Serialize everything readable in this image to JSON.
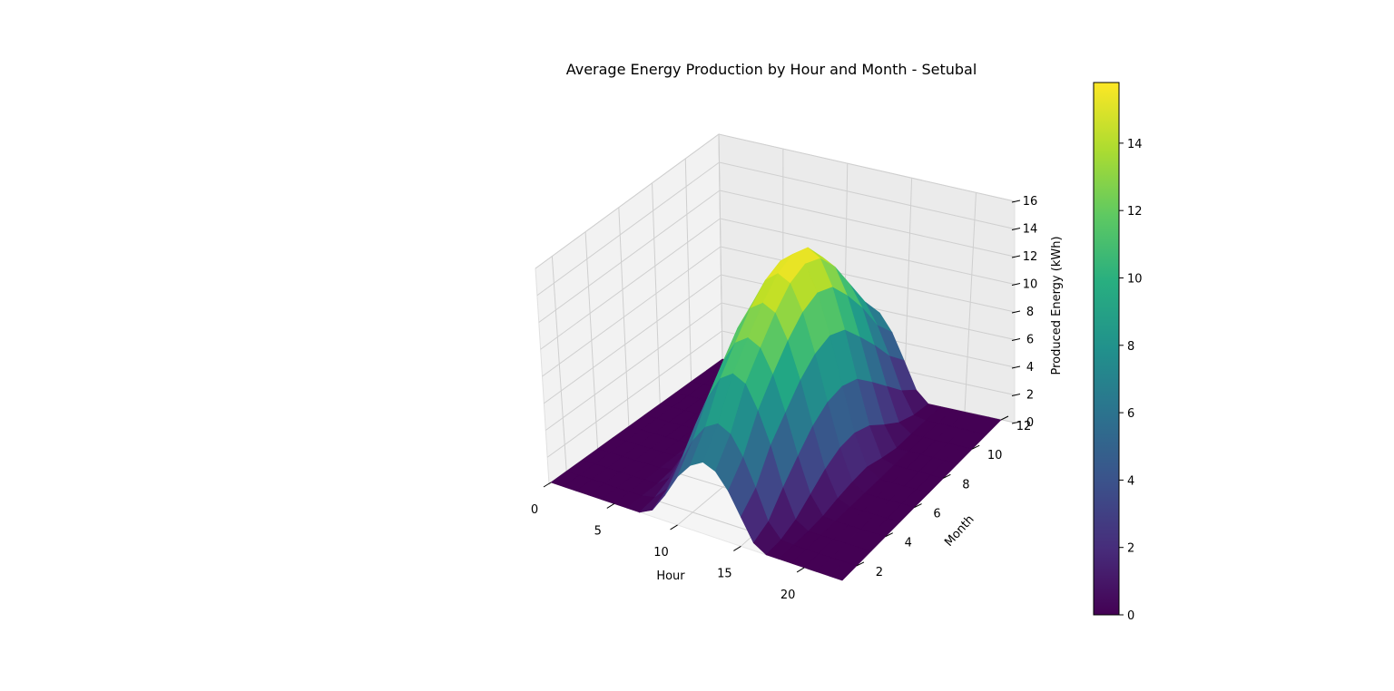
{
  "chart_data": {
    "type": "surface3d",
    "title": "Average Energy Production by Hour and Month - Setubal",
    "xlabel": "Hour",
    "ylabel": "Month",
    "zlabel": "Produced Energy (kWh)",
    "x_ticks": [
      0,
      5,
      10,
      15,
      20
    ],
    "y_ticks": [
      2,
      4,
      6,
      8,
      10,
      12
    ],
    "z_ticks": [
      0,
      2,
      4,
      6,
      8,
      10,
      12,
      14,
      16
    ],
    "xlim": [
      0,
      23
    ],
    "ylim": [
      1,
      12
    ],
    "zlim": [
      0,
      16
    ],
    "colorbar": {
      "colormap": "viridis",
      "range": [
        0,
        15.8
      ],
      "ticks": [
        0,
        2,
        4,
        6,
        8,
        10,
        12,
        14
      ]
    },
    "hours": [
      0,
      1,
      2,
      3,
      4,
      5,
      6,
      7,
      8,
      9,
      10,
      11,
      12,
      13,
      14,
      15,
      16,
      17,
      18,
      19,
      20,
      21,
      22,
      23
    ],
    "months": [
      1,
      2,
      3,
      4,
      5,
      6,
      7,
      8,
      9,
      10,
      11,
      12
    ],
    "z_grid": [
      [
        0,
        0,
        0,
        0,
        0,
        0,
        0,
        0,
        0.5,
        2.0,
        3.8,
        5.0,
        5.6,
        5.2,
        4.0,
        2.3,
        0.6,
        0,
        0,
        0,
        0,
        0,
        0,
        0
      ],
      [
        0,
        0,
        0,
        0,
        0,
        0,
        0,
        0.2,
        1.2,
        3.5,
        5.6,
        7.0,
        7.6,
        7.1,
        5.6,
        3.5,
        1.2,
        0.1,
        0,
        0,
        0,
        0,
        0,
        0
      ],
      [
        0,
        0,
        0,
        0,
        0,
        0,
        0,
        0.8,
        2.8,
        5.5,
        8.0,
        9.8,
        10.5,
        10.0,
        8.2,
        5.8,
        2.8,
        0.6,
        0,
        0,
        0,
        0,
        0,
        0
      ],
      [
        0,
        0,
        0,
        0,
        0,
        0,
        0.2,
        1.8,
        4.3,
        7.2,
        9.8,
        11.6,
        12.3,
        11.8,
        10.0,
        7.3,
        4.2,
        1.5,
        0.1,
        0,
        0,
        0,
        0,
        0
      ],
      [
        0,
        0,
        0,
        0,
        0,
        0,
        0.6,
        2.6,
        5.6,
        8.8,
        11.5,
        13.3,
        14.0,
        13.5,
        11.6,
        8.8,
        5.5,
        2.4,
        0.4,
        0,
        0,
        0,
        0,
        0
      ],
      [
        0,
        0,
        0,
        0,
        0,
        0,
        0.8,
        3.0,
        6.2,
        9.6,
        12.5,
        14.5,
        15.3,
        14.8,
        12.8,
        9.8,
        6.3,
        3.0,
        0.6,
        0,
        0,
        0,
        0,
        0
      ],
      [
        0,
        0,
        0,
        0,
        0,
        0,
        0.7,
        2.9,
        6.3,
        9.9,
        13.0,
        15.0,
        15.8,
        15.3,
        13.3,
        10.2,
        6.5,
        3.1,
        0.7,
        0,
        0,
        0,
        0,
        0
      ],
      [
        0,
        0,
        0,
        0,
        0,
        0,
        0.3,
        2.3,
        5.8,
        9.4,
        12.5,
        14.5,
        15.3,
        14.7,
        12.7,
        9.6,
        6.0,
        2.6,
        0.3,
        0,
        0,
        0,
        0,
        0
      ],
      [
        0,
        0,
        0,
        0,
        0,
        0,
        0,
        1.5,
        4.8,
        8.2,
        11.0,
        12.8,
        13.5,
        13.0,
        11.0,
        8.0,
        4.7,
        1.6,
        0,
        0,
        0,
        0,
        0,
        0
      ],
      [
        0,
        0,
        0,
        0,
        0,
        0,
        0,
        0.8,
        3.5,
        6.5,
        9.0,
        10.6,
        11.2,
        10.6,
        9.0,
        6.3,
        3.3,
        0.7,
        0,
        0,
        0,
        0,
        0,
        0
      ],
      [
        0,
        0,
        0,
        0,
        0,
        0,
        0,
        0.3,
        2.2,
        4.6,
        6.8,
        8.2,
        8.7,
        8.2,
        6.6,
        4.4,
        1.9,
        0.2,
        0,
        0,
        0,
        0,
        0,
        0
      ],
      [
        0,
        0,
        0,
        0,
        0,
        0,
        0,
        0,
        1.0,
        3.0,
        5.0,
        6.3,
        6.8,
        6.3,
        5.0,
        3.0,
        0.9,
        0,
        0,
        0,
        0,
        0,
        0,
        0
      ]
    ]
  }
}
